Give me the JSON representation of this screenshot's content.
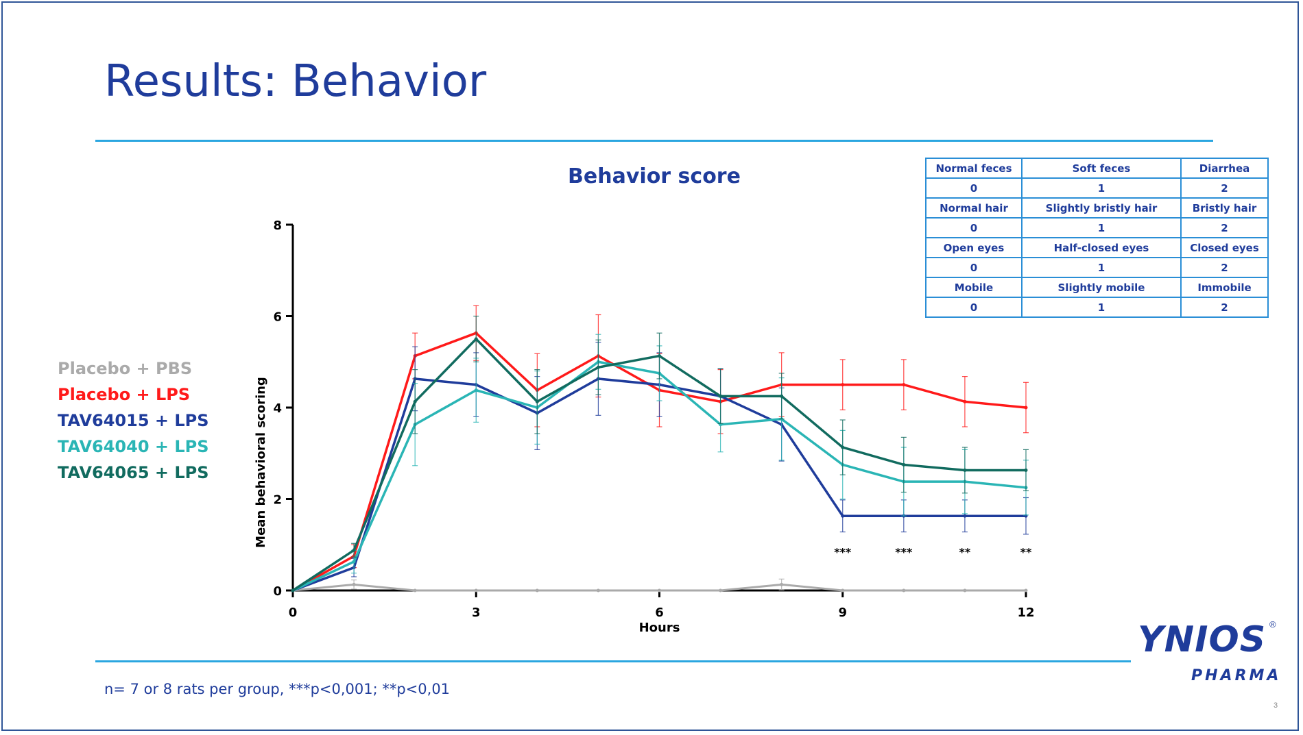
{
  "slide": {
    "title": "Results: Behavior",
    "footnote": "n= 7 or 8 rats per group, ***p<0,001; **p<0,01",
    "page_number": "3",
    "logo": {
      "main": "YNIOS",
      "registered": "®",
      "sub": "PHARMA"
    }
  },
  "colors": {
    "title": "#1f3c9b",
    "rule": "#2aa6e0",
    "placebo_pbs": "#aaaaaa",
    "placebo_lps": "#ff1a1a",
    "tav64015": "#1f3c9b",
    "tav64040": "#2ab5b5",
    "tav64065": "#116b5f"
  },
  "scoring_table": {
    "rows": [
      [
        "Normal feces",
        "Soft feces",
        "Diarrhea"
      ],
      [
        "0",
        "1",
        "2"
      ],
      [
        "Normal hair",
        "Slightly bristly hair",
        "Bristly hair"
      ],
      [
        "0",
        "1",
        "2"
      ],
      [
        "Open eyes",
        "Half-closed eyes",
        "Closed eyes"
      ],
      [
        "0",
        "1",
        "2"
      ],
      [
        "Mobile",
        "Slightly mobile",
        "Immobile"
      ],
      [
        "0",
        "1",
        "2"
      ]
    ]
  },
  "chart_data": {
    "type": "line",
    "title": "Behavior score",
    "xlabel": "Hours",
    "ylabel": "Mean behavioral scoring",
    "xlim": [
      0,
      12
    ],
    "ylim": [
      0,
      8
    ],
    "xticks": [
      "0",
      "3",
      "6",
      "9",
      "12"
    ],
    "yticks": [
      "0",
      "2",
      "4",
      "6",
      "8"
    ],
    "grid": false,
    "legend": "left",
    "x": [
      0,
      1,
      2,
      3,
      4,
      5,
      6,
      7,
      8,
      9,
      10,
      11,
      12
    ],
    "series": [
      {
        "name": "Placebo + PBS",
        "color": "#aaaaaa",
        "values": [
          0,
          0.13,
          0,
          0,
          0,
          0,
          0,
          0,
          0.13,
          0,
          0,
          0,
          0
        ],
        "errors": [
          0,
          0.1,
          0,
          0,
          0,
          0,
          0,
          0,
          0.12,
          0,
          0,
          0,
          0
        ]
      },
      {
        "name": "Placebo + LPS",
        "color": "#ff1a1a",
        "values": [
          0,
          0.75,
          5.13,
          5.63,
          4.38,
          5.13,
          4.38,
          4.13,
          4.5,
          4.5,
          4.5,
          4.13,
          4.0
        ],
        "errors": [
          0,
          0.25,
          0.5,
          0.6,
          0.8,
          0.9,
          0.8,
          0.7,
          0.7,
          0.55,
          0.55,
          0.55,
          0.55
        ]
      },
      {
        "name": "TAV64015 + LPS",
        "color": "#1f3c9b",
        "values": [
          0,
          0.5,
          4.63,
          4.5,
          3.88,
          4.63,
          4.5,
          4.25,
          3.63,
          1.63,
          1.63,
          1.63,
          1.63
        ],
        "errors": [
          0,
          0.2,
          0.7,
          0.7,
          0.8,
          0.8,
          0.7,
          0.6,
          0.8,
          0.35,
          0.35,
          0.35,
          0.4
        ]
      },
      {
        "name": "TAV64040 + LPS",
        "color": "#2ab5b5",
        "values": [
          0,
          0.63,
          3.63,
          4.38,
          4.0,
          5.0,
          4.75,
          3.63,
          3.75,
          2.75,
          2.38,
          2.38,
          2.25
        ],
        "errors": [
          0,
          0.25,
          0.9,
          0.7,
          0.8,
          0.6,
          0.6,
          0.6,
          0.9,
          0.75,
          0.75,
          0.7,
          0.6
        ]
      },
      {
        "name": "TAV64065 + LPS",
        "color": "#116b5f",
        "values": [
          0,
          0.88,
          4.13,
          5.5,
          4.13,
          4.88,
          5.13,
          4.25,
          4.25,
          3.13,
          2.75,
          2.63,
          2.63
        ],
        "errors": [
          0,
          0.15,
          0.7,
          0.5,
          0.7,
          0.6,
          0.5,
          0.6,
          0.5,
          0.6,
          0.6,
          0.5,
          0.45
        ]
      }
    ],
    "annotations": [
      {
        "x": 9,
        "text": "***"
      },
      {
        "x": 10,
        "text": "***"
      },
      {
        "x": 11,
        "text": "**"
      },
      {
        "x": 12,
        "text": "**"
      }
    ]
  }
}
